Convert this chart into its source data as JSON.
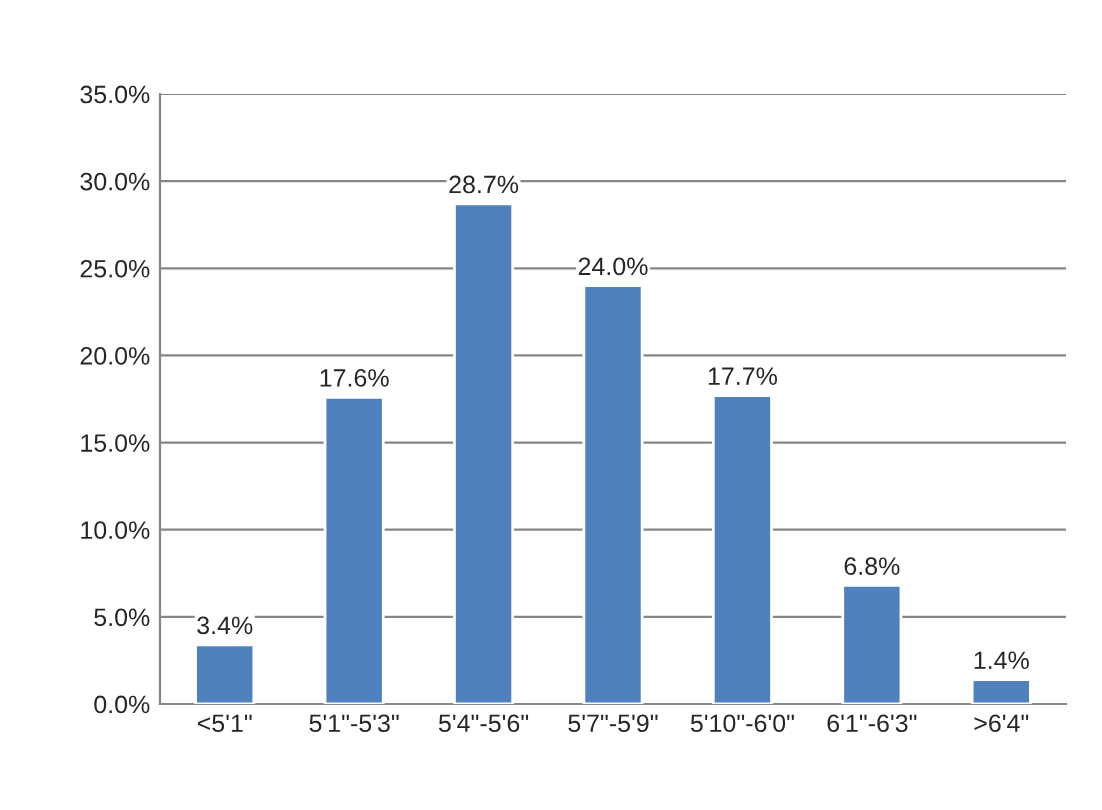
{
  "chart_data": {
    "type": "bar",
    "categories": [
      "<5'1\"",
      "5'1\"-5'3\"",
      "5'4\"-5'6\"",
      "5'7\"-5'9\"",
      "5'10\"-6'0\"",
      "6'1\"-6'3\"",
      ">6'4\""
    ],
    "values": [
      3.4,
      17.6,
      28.7,
      24.0,
      17.7,
      6.8,
      1.4
    ],
    "value_labels": [
      "3.4%",
      "17.6%",
      "28.7%",
      "24.0%",
      "17.7%",
      "6.8%",
      "1.4%"
    ],
    "color": "#4f81bd",
    "ylim": [
      0,
      35
    ],
    "yticks": [
      {
        "value": 0,
        "label": "0.0%"
      },
      {
        "value": 5,
        "label": "5.0%"
      },
      {
        "value": 10,
        "label": "10.0%"
      },
      {
        "value": 15,
        "label": "15.0%"
      },
      {
        "value": 20,
        "label": "20.0%"
      },
      {
        "value": 25,
        "label": "25.0%"
      },
      {
        "value": 30,
        "label": "30.0%"
      },
      {
        "value": 35,
        "label": "35.0%"
      }
    ],
    "grid": "y",
    "legend": false
  }
}
